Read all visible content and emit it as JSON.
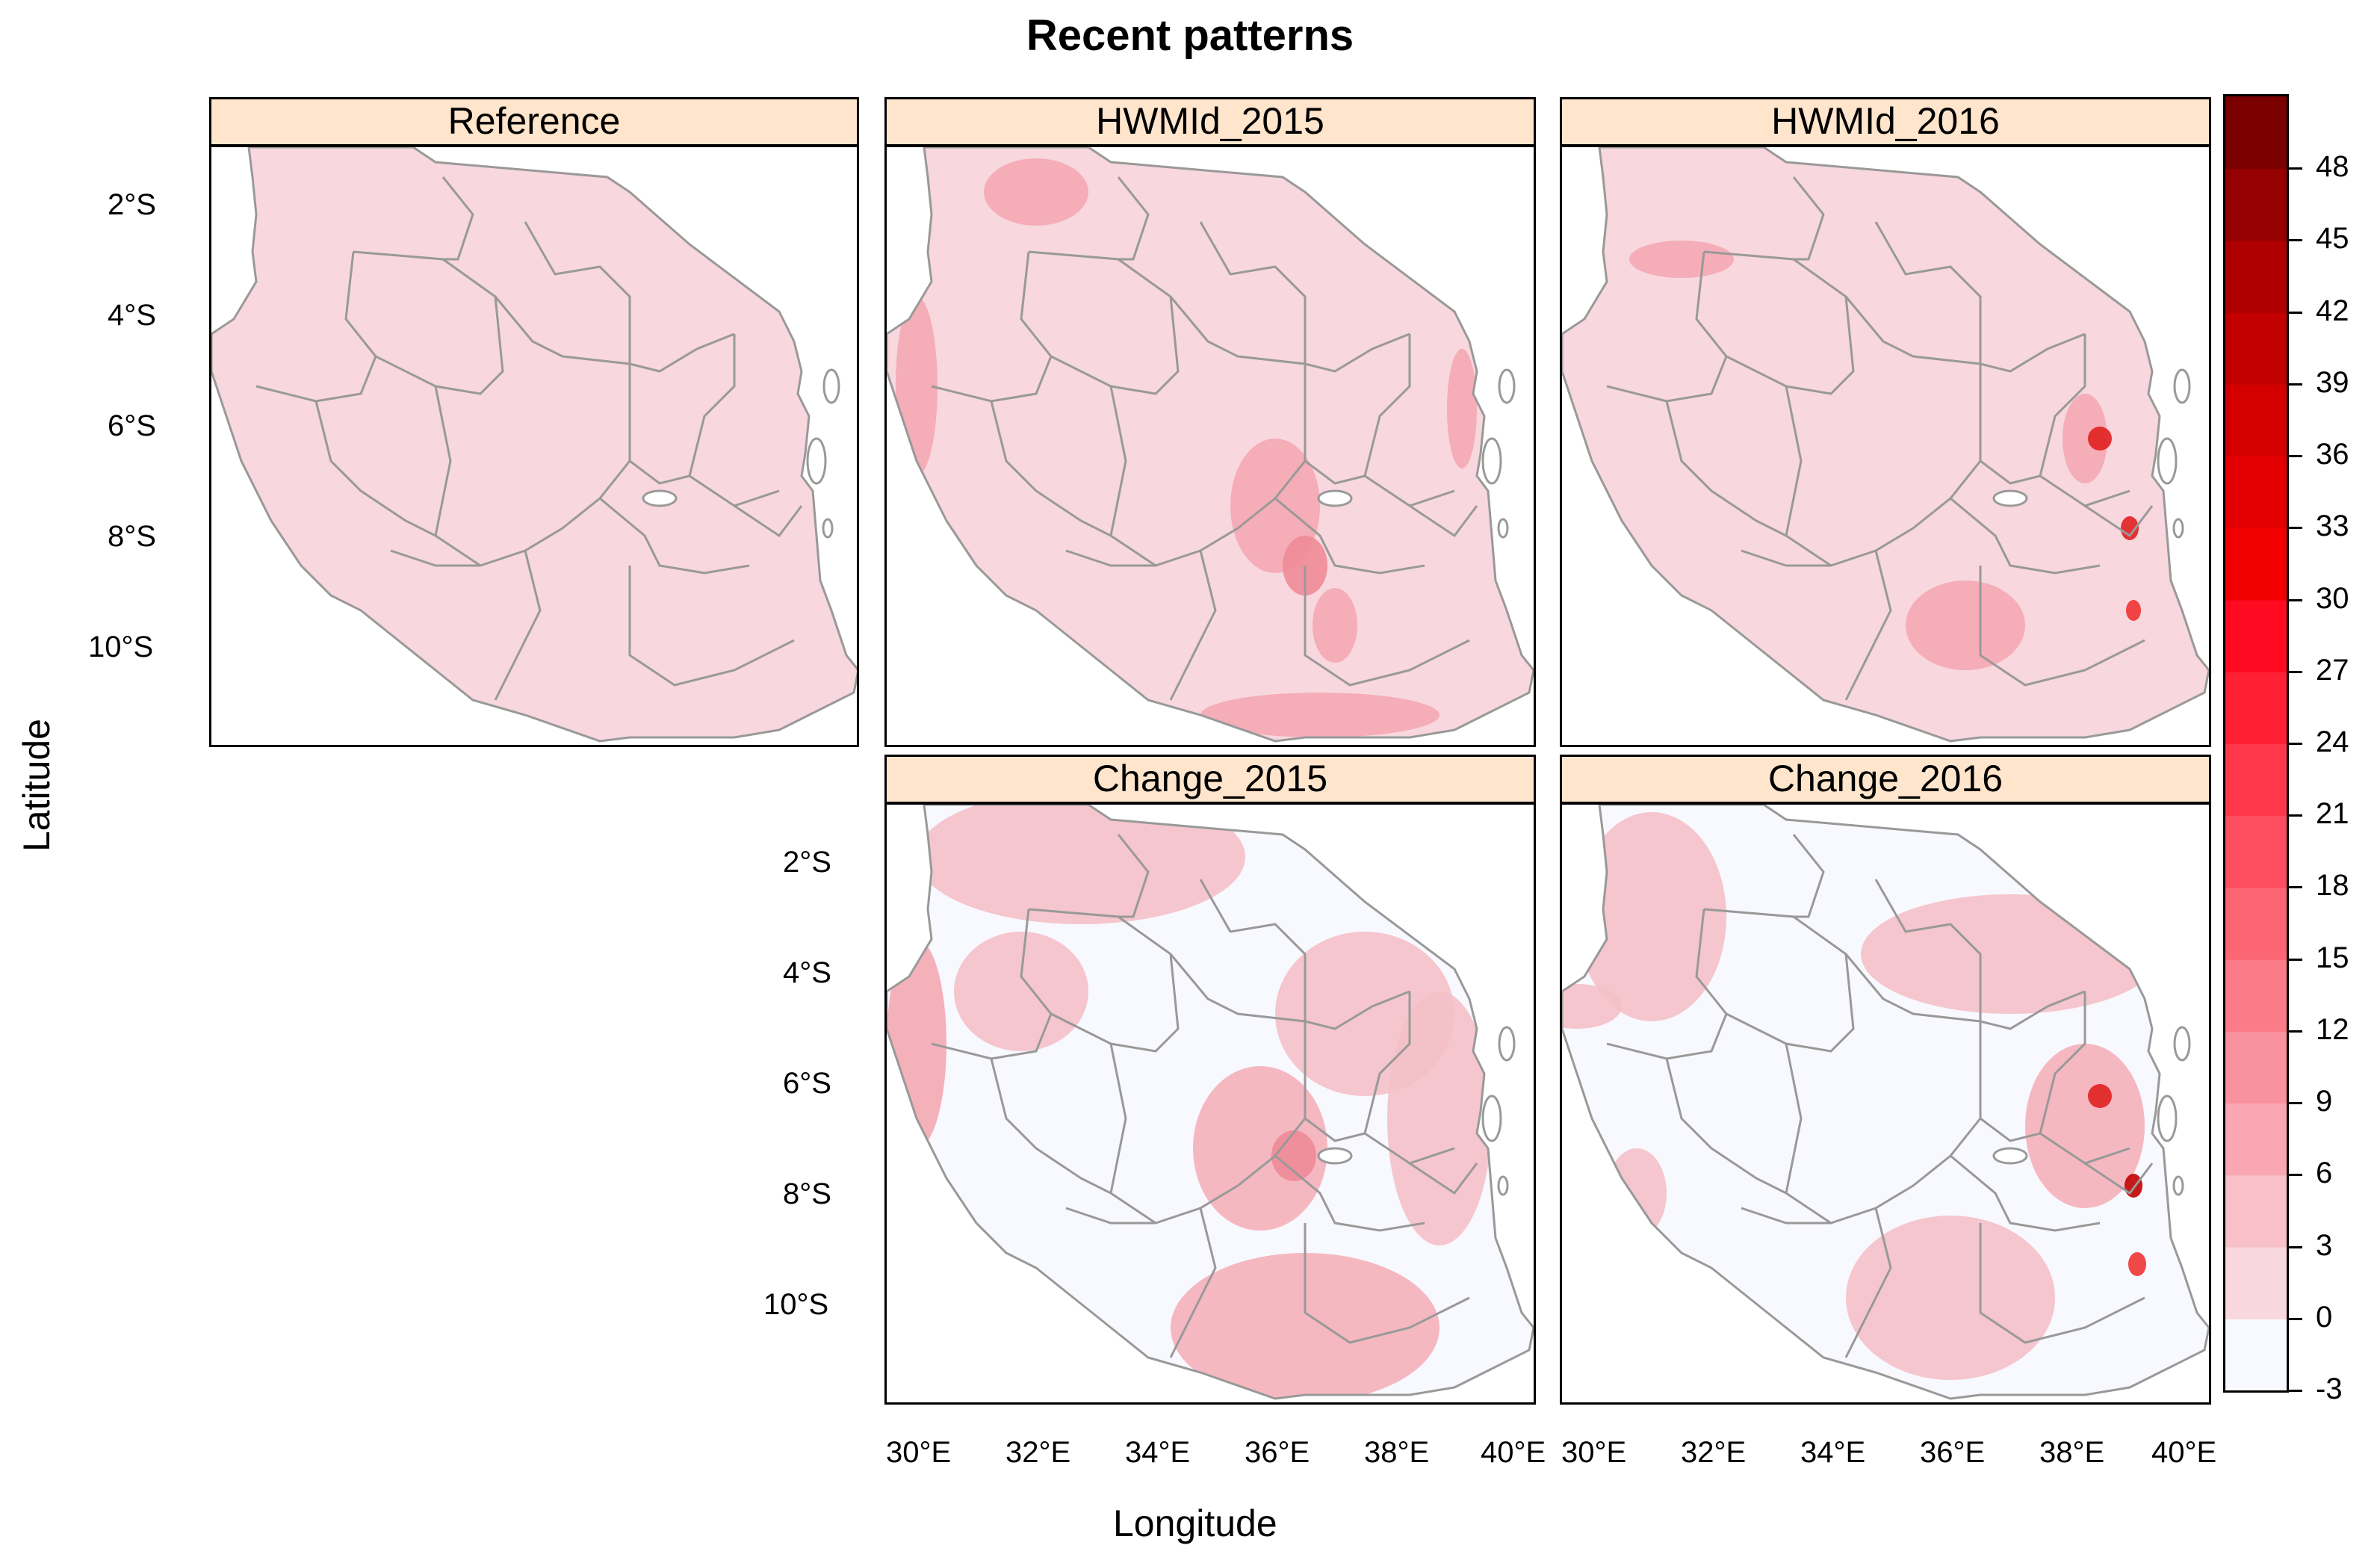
{
  "title": "Recent patterns",
  "axes": {
    "xlabel": "Longitude",
    "ylabel": "Latitude",
    "x_ticks": [
      "30°E",
      "32°E",
      "34°E",
      "36°E",
      "38°E",
      "40°E"
    ],
    "y_ticks": [
      "2°S",
      "4°S",
      "6°S",
      "8°S",
      "10°S"
    ]
  },
  "panels": [
    {
      "id": "reference",
      "label": "Reference",
      "row": 0,
      "col": 0
    },
    {
      "id": "hwmid-2015",
      "label": "HWMId_2015",
      "row": 0,
      "col": 1
    },
    {
      "id": "hwmid-2016",
      "label": "HWMId_2016",
      "row": 0,
      "col": 2
    },
    {
      "id": "change-2015",
      "label": "Change_2015",
      "row": 1,
      "col": 1
    },
    {
      "id": "change-2016",
      "label": "Change_2016",
      "row": 1,
      "col": 2
    }
  ],
  "colorkey": {
    "labels": [
      "48",
      "45",
      "42",
      "39",
      "36",
      "33",
      "30",
      "27",
      "24",
      "21",
      "18",
      "15",
      "12",
      "9",
      "6",
      "3",
      "0",
      "-3"
    ],
    "min": -3,
    "max": 51,
    "colors": {
      "low": "#f8f8ff",
      "base": "#f8d7de",
      "mid": "#ff0000",
      "high": "#7a0000"
    }
  },
  "colors": {
    "strip": "#ffe5cc",
    "country_fill": "#f8d7de",
    "change_base": "#f8f8ff",
    "border_lines": "#999999"
  }
}
